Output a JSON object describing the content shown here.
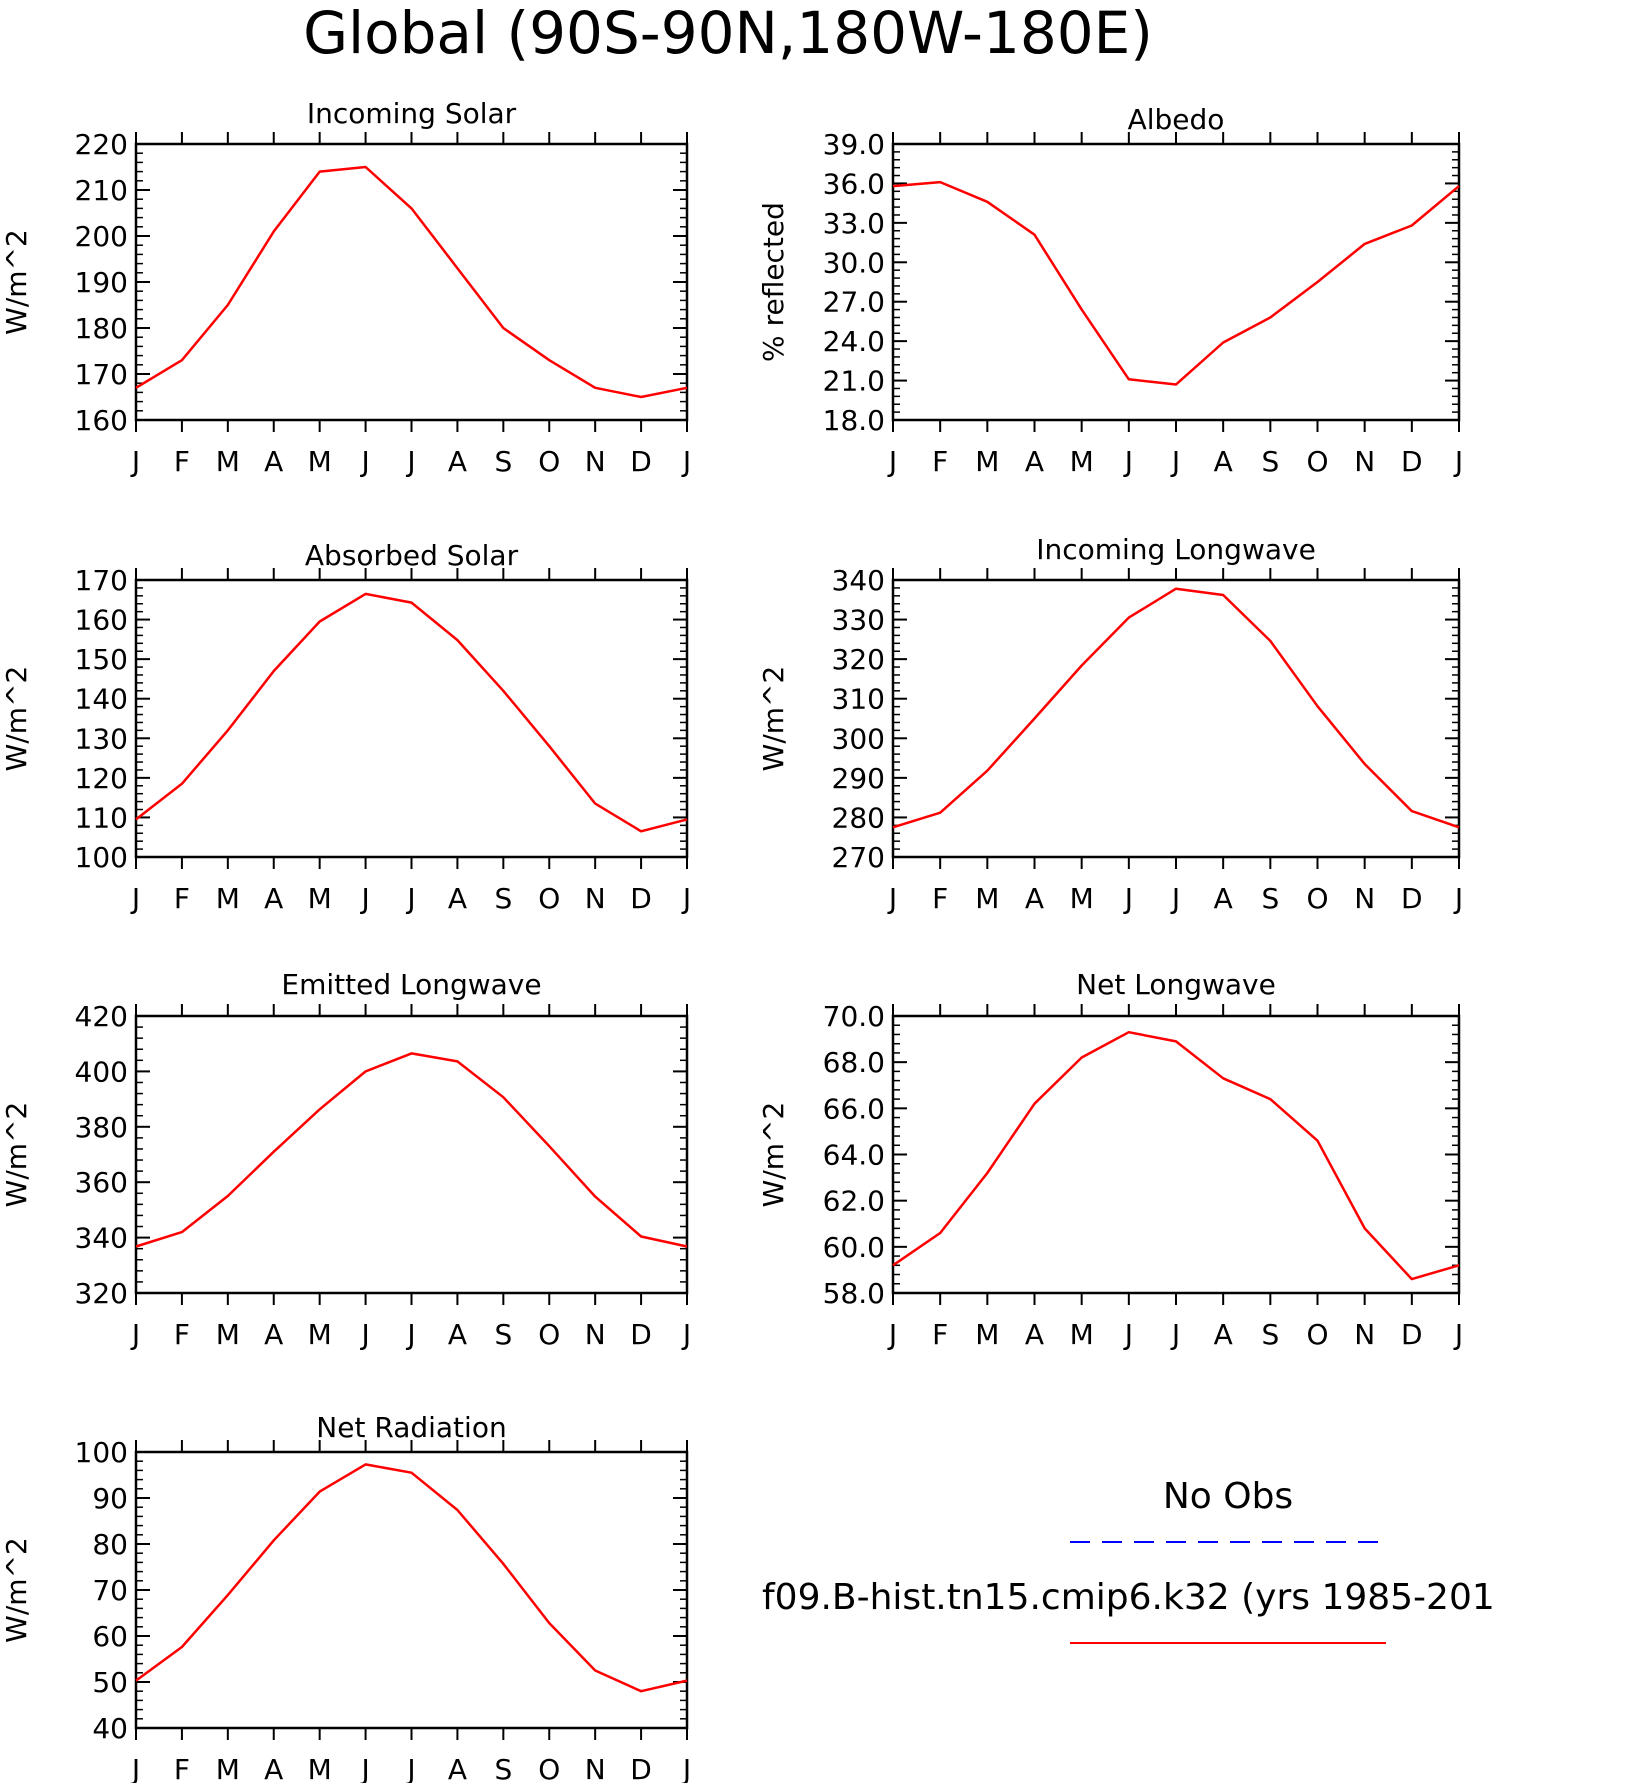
{
  "title": "Global (90S-90N,180W-180E)",
  "months": [
    "J",
    "F",
    "M",
    "A",
    "M",
    "J",
    "J",
    "A",
    "S",
    "O",
    "N",
    "D",
    "J"
  ],
  "colors": {
    "model": "#ff0000",
    "obs": "#0000ff",
    "axis": "#000000"
  },
  "legend": {
    "obs_label": "No Obs",
    "model_label": "f09.B-hist.tn15.cmip6.k32 (yrs 1985-201"
  },
  "chart_data": [
    {
      "type": "line",
      "title": "Incoming Solar",
      "ylabel": "W/m^2",
      "ylim": [
        160,
        220
      ],
      "yticks": [
        160,
        170,
        180,
        190,
        200,
        210,
        220
      ],
      "ytick_labels": [
        "160",
        "170",
        "180",
        "190",
        "200",
        "210",
        "220"
      ],
      "categories": [
        "J",
        "F",
        "M",
        "A",
        "M",
        "J",
        "J",
        "A",
        "S",
        "O",
        "N",
        "D",
        "J"
      ],
      "series": [
        {
          "values": [
            167,
            173,
            185,
            201,
            214,
            215,
            206,
            193,
            180,
            173,
            167,
            165,
            167
          ]
        }
      ]
    },
    {
      "type": "line",
      "title": "Albedo",
      "ylabel": "% reflected",
      "ylim": [
        18,
        39
      ],
      "yticks": [
        18,
        21,
        24,
        27,
        30,
        33,
        36,
        39
      ],
      "ytick_labels": [
        "18.0",
        "21.0",
        "24.0",
        "27.0",
        "30.0",
        "33.0",
        "36.0",
        "39.0"
      ],
      "categories": [
        "J",
        "F",
        "M",
        "A",
        "M",
        "J",
        "J",
        "A",
        "S",
        "O",
        "N",
        "D",
        "J"
      ],
      "series": [
        {
          "values": [
            35.8,
            36.1,
            34.6,
            32.1,
            26.4,
            21.1,
            20.7,
            23.9,
            25.8,
            28.5,
            31.4,
            32.8,
            35.8
          ]
        }
      ]
    },
    {
      "type": "line",
      "title": "Absorbed Solar",
      "ylabel": "W/m^2",
      "ylim": [
        100,
        170
      ],
      "yticks": [
        100,
        110,
        120,
        130,
        140,
        150,
        160,
        170
      ],
      "ytick_labels": [
        "100",
        "110",
        "120",
        "130",
        "140",
        "150",
        "160",
        "170"
      ],
      "categories": [
        "J",
        "F",
        "M",
        "A",
        "M",
        "J",
        "J",
        "A",
        "S",
        "O",
        "N",
        "D",
        "J"
      ],
      "series": [
        {
          "values": [
            109.5,
            118.5,
            132,
            147,
            159.5,
            166.5,
            164.3,
            154.8,
            142,
            128,
            113.5,
            106.5,
            109.5
          ]
        }
      ]
    },
    {
      "type": "line",
      "title": "Incoming Longwave",
      "ylabel": "W/m^2",
      "ylim": [
        270,
        340
      ],
      "yticks": [
        270,
        280,
        290,
        300,
        310,
        320,
        330,
        340
      ],
      "ytick_labels": [
        "270",
        "280",
        "290",
        "300",
        "310",
        "320",
        "330",
        "340"
      ],
      "categories": [
        "J",
        "F",
        "M",
        "A",
        "M",
        "J",
        "J",
        "A",
        "S",
        "O",
        "N",
        "D",
        "J"
      ],
      "series": [
        {
          "values": [
            277.5,
            281.2,
            291.8,
            305,
            318.4,
            330.5,
            337.8,
            336.2,
            324.6,
            308.1,
            293.5,
            281.6,
            277.5
          ]
        }
      ]
    },
    {
      "type": "line",
      "title": "Emitted Longwave",
      "ylabel": "W/m^2",
      "ylim": [
        320,
        420
      ],
      "yticks": [
        320,
        340,
        360,
        380,
        400,
        420
      ],
      "ytick_labels": [
        "320",
        "340",
        "360",
        "380",
        "400",
        "420"
      ],
      "categories": [
        "J",
        "F",
        "M",
        "A",
        "M",
        "J",
        "J",
        "A",
        "S",
        "O",
        "N",
        "D",
        "J"
      ],
      "series": [
        {
          "values": [
            336.8,
            342,
            355,
            371,
            386.3,
            400,
            406.5,
            403.6,
            390.7,
            373,
            354.8,
            340.4,
            336.8
          ]
        }
      ]
    },
    {
      "type": "line",
      "title": "Net Longwave",
      "ylabel": "W/m^2",
      "ylim": [
        58,
        70
      ],
      "yticks": [
        58,
        60,
        62,
        64,
        66,
        68,
        70
      ],
      "ytick_labels": [
        "58.0",
        "60.0",
        "62.0",
        "64.0",
        "66.0",
        "68.0",
        "70.0"
      ],
      "categories": [
        "J",
        "F",
        "M",
        "A",
        "M",
        "J",
        "J",
        "A",
        "S",
        "O",
        "N",
        "D",
        "J"
      ],
      "series": [
        {
          "values": [
            59.2,
            60.6,
            63.2,
            66.2,
            68.2,
            69.3,
            68.9,
            67.3,
            66.4,
            64.6,
            60.8,
            58.6,
            59.2
          ]
        }
      ]
    },
    {
      "type": "line",
      "title": "Net Radiation",
      "ylabel": "W/m^2",
      "ylim": [
        40,
        100
      ],
      "yticks": [
        40,
        50,
        60,
        70,
        80,
        90,
        100
      ],
      "ytick_labels": [
        "40",
        "50",
        "60",
        "70",
        "80",
        "90",
        "100"
      ],
      "categories": [
        "J",
        "F",
        "M",
        "A",
        "M",
        "J",
        "J",
        "A",
        "S",
        "O",
        "N",
        "D",
        "J"
      ],
      "series": [
        {
          "values": [
            50.3,
            57.6,
            68.9,
            80.8,
            91.4,
            97.3,
            95.5,
            87.4,
            75.7,
            62.8,
            52.5,
            48,
            50.3
          ]
        }
      ]
    }
  ]
}
